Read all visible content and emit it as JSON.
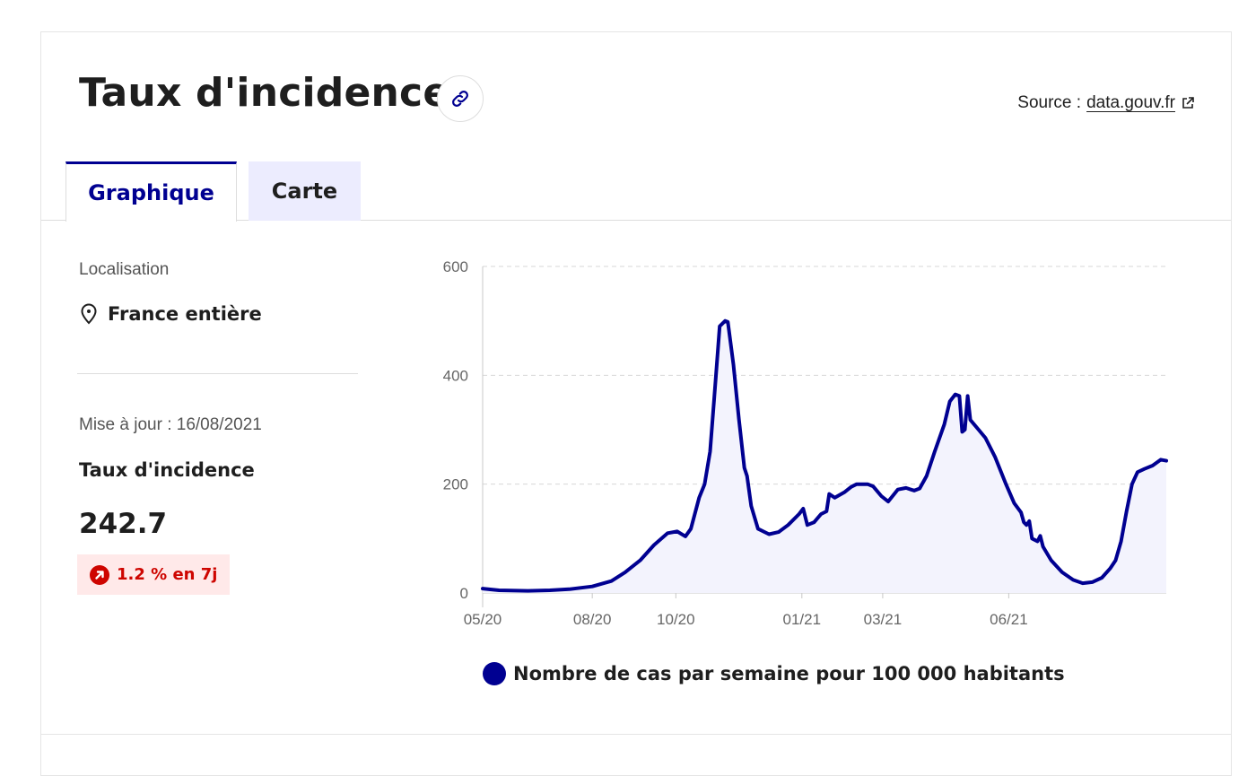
{
  "title": "Taux d'incidence",
  "source": {
    "label": "Source :",
    "link": "data.gouv.fr"
  },
  "tabs": [
    {
      "label": "Graphique"
    },
    {
      "label": "Carte"
    }
  ],
  "location": {
    "label": "Localisation",
    "value": "France entière"
  },
  "updated": "Mise à jour : 16/08/2021",
  "indicator": {
    "name": "Taux d'incidence",
    "value": "242.7",
    "trend": "1.2 % en 7j"
  },
  "colors": {
    "accent": "#000091",
    "trend": "#ce0500",
    "trend_bg": "#ffe9e9",
    "fill": "#f3f3fd"
  },
  "icons": {
    "link": "link-icon",
    "external": "external-link-icon",
    "location": "map-pin-icon",
    "trend": "arrow-up-right-icon"
  },
  "chart_data": {
    "type": "area",
    "ylim": [
      0,
      600
    ],
    "yticks": [
      0,
      200,
      400,
      600
    ],
    "xticks": [
      "05/20",
      "08/20",
      "10/20",
      "01/21",
      "03/21",
      "06/21"
    ],
    "grid": true,
    "legend_position": "bottom",
    "series": [
      {
        "name": "Nombre de cas par semaine pour 100 000 habitants",
        "points": [
          [
            "2020-05-13",
            8
          ],
          [
            "2020-05-25",
            5
          ],
          [
            "2020-06-15",
            4
          ],
          [
            "2020-07-01",
            5
          ],
          [
            "2020-07-15",
            7
          ],
          [
            "2020-08-01",
            12
          ],
          [
            "2020-08-15",
            22
          ],
          [
            "2020-08-25",
            38
          ],
          [
            "2020-09-05",
            60
          ],
          [
            "2020-09-15",
            88
          ],
          [
            "2020-09-25",
            110
          ],
          [
            "2020-10-02",
            113
          ],
          [
            "2020-10-08",
            104
          ],
          [
            "2020-10-12",
            118
          ],
          [
            "2020-10-18",
            175
          ],
          [
            "2020-10-22",
            200
          ],
          [
            "2020-10-26",
            260
          ],
          [
            "2020-10-30",
            390
          ],
          [
            "2020-11-02",
            490
          ],
          [
            "2020-11-06",
            500
          ],
          [
            "2020-11-08",
            498
          ],
          [
            "2020-11-12",
            420
          ],
          [
            "2020-11-16",
            320
          ],
          [
            "2020-11-20",
            230
          ],
          [
            "2020-11-22",
            215
          ],
          [
            "2020-11-25",
            160
          ],
          [
            "2020-11-30",
            118
          ],
          [
            "2020-12-08",
            108
          ],
          [
            "2020-12-15",
            112
          ],
          [
            "2020-12-22",
            125
          ],
          [
            "2020-12-30",
            145
          ],
          [
            "2021-01-02",
            155
          ],
          [
            "2021-01-05",
            125
          ],
          [
            "2021-01-10",
            130
          ],
          [
            "2021-01-15",
            145
          ],
          [
            "2021-01-19",
            150
          ],
          [
            "2021-01-21",
            182
          ],
          [
            "2021-01-25",
            175
          ],
          [
            "2021-02-01",
            185
          ],
          [
            "2021-02-06",
            195
          ],
          [
            "2021-02-10",
            200
          ],
          [
            "2021-02-18",
            200
          ],
          [
            "2021-02-22",
            196
          ],
          [
            "2021-02-28",
            178
          ],
          [
            "2021-03-05",
            168
          ],
          [
            "2021-03-12",
            190
          ],
          [
            "2021-03-18",
            193
          ],
          [
            "2021-03-24",
            188
          ],
          [
            "2021-03-28",
            192
          ],
          [
            "2021-04-02",
            215
          ],
          [
            "2021-04-08",
            260
          ],
          [
            "2021-04-15",
            310
          ],
          [
            "2021-04-19",
            352
          ],
          [
            "2021-04-23",
            365
          ],
          [
            "2021-04-26",
            362
          ],
          [
            "2021-04-28",
            296
          ],
          [
            "2021-04-30",
            300
          ],
          [
            "2021-05-02",
            362
          ],
          [
            "2021-05-04",
            318
          ],
          [
            "2021-05-10",
            300
          ],
          [
            "2021-05-15",
            285
          ],
          [
            "2021-05-22",
            250
          ],
          [
            "2021-05-30",
            200
          ],
          [
            "2021-06-05",
            165
          ],
          [
            "2021-06-10",
            148
          ],
          [
            "2021-06-12",
            130
          ],
          [
            "2021-06-14",
            125
          ],
          [
            "2021-06-16",
            132
          ],
          [
            "2021-06-18",
            100
          ],
          [
            "2021-06-22",
            95
          ],
          [
            "2021-06-24",
            105
          ],
          [
            "2021-06-26",
            85
          ],
          [
            "2021-07-02",
            60
          ],
          [
            "2021-07-10",
            38
          ],
          [
            "2021-07-18",
            24
          ],
          [
            "2021-07-25",
            18
          ],
          [
            "2021-08-01",
            20
          ],
          [
            "2021-08-08",
            28
          ],
          [
            "2021-08-14",
            45
          ],
          [
            "2021-08-18",
            60
          ],
          [
            "2021-08-22",
            95
          ],
          [
            "2021-08-26",
            150
          ],
          [
            "2021-08-30",
            200
          ],
          [
            "2021-09-03",
            222
          ],
          [
            "2021-09-08",
            228
          ],
          [
            "2021-09-14",
            234
          ],
          [
            "2021-09-20",
            245
          ],
          [
            "2021-09-24",
            243
          ]
        ]
      }
    ]
  }
}
